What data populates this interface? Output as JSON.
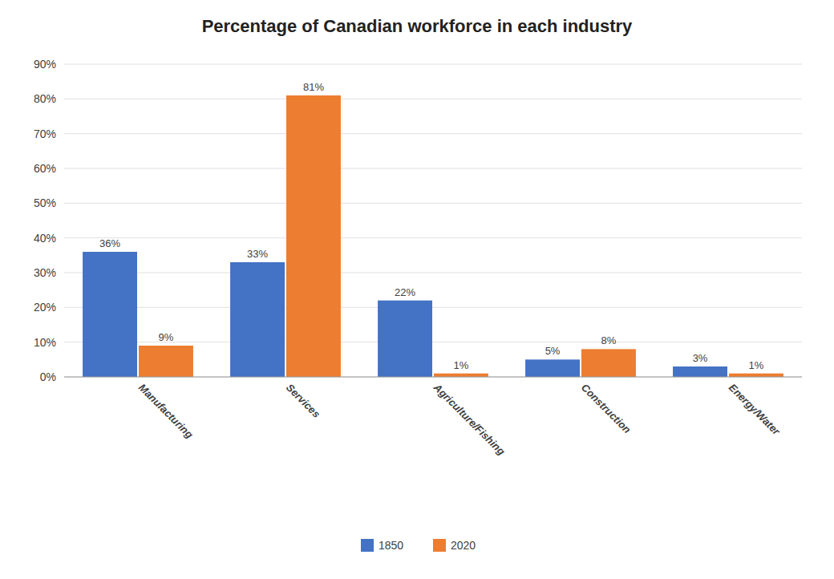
{
  "chart_data": {
    "type": "bar",
    "title": "Percentage of Canadian workforce in each industry",
    "categories": [
      "Manufacturing",
      "Services",
      "Agriculture/Fishing",
      "Construction",
      "Energy/Water"
    ],
    "series": [
      {
        "name": "1850",
        "color": "#4472C4",
        "values": [
          36,
          33,
          22,
          5,
          3
        ],
        "value_labels": [
          "36%",
          "33%",
          "22%",
          "5%",
          "3%"
        ]
      },
      {
        "name": "2020",
        "color": "#ED7D31",
        "values": [
          9,
          81,
          1,
          8,
          1
        ],
        "value_labels": [
          "9%",
          "81%",
          "1%",
          "8%",
          "1%"
        ]
      }
    ],
    "ylim": [
      0,
      90
    ],
    "yticks": [
      {
        "value": 0,
        "label": "0%"
      },
      {
        "value": 10,
        "label": "10%"
      },
      {
        "value": 20,
        "label": "20%"
      },
      {
        "value": 30,
        "label": "30%"
      },
      {
        "value": 40,
        "label": "40%"
      },
      {
        "value": 50,
        "label": "50%"
      },
      {
        "value": 60,
        "label": "60%"
      },
      {
        "value": 70,
        "label": "70%"
      },
      {
        "value": 80,
        "label": "80%"
      },
      {
        "value": 90,
        "label": "90%"
      }
    ],
    "grid": true,
    "legend": "bottom",
    "data_labels": true
  }
}
